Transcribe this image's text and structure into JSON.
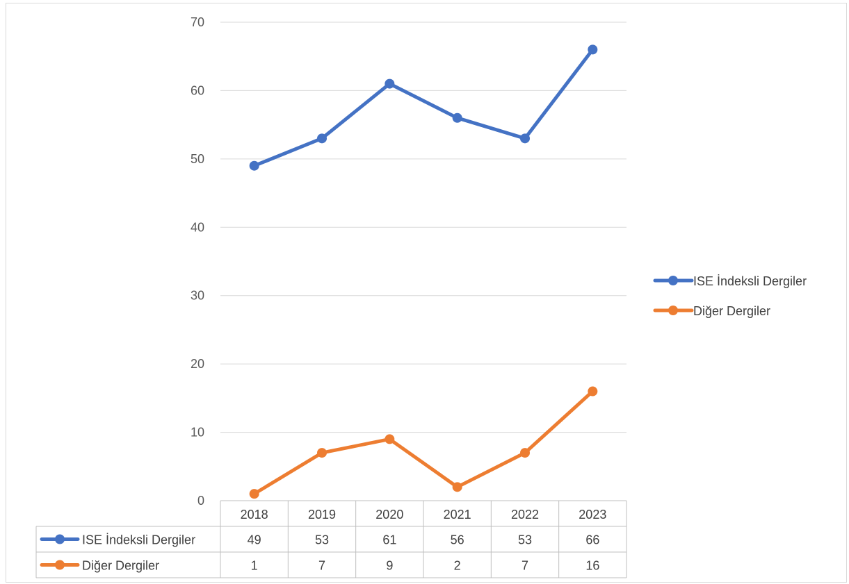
{
  "chart_data": {
    "type": "line",
    "categories": [
      "2018",
      "2019",
      "2020",
      "2021",
      "2022",
      "2023"
    ],
    "series": [
      {
        "name": "ISE İndeksli Dergiler",
        "color": "#4472C4",
        "values": [
          49,
          53,
          61,
          56,
          53,
          66
        ]
      },
      {
        "name": "Diğer Dergiler",
        "color": "#ED7D31",
        "values": [
          1,
          7,
          9,
          2,
          7,
          16
        ]
      }
    ],
    "y_ticks": [
      0,
      10,
      20,
      30,
      40,
      50,
      60,
      70
    ],
    "ylim": [
      0,
      70
    ],
    "grid": true,
    "legend_position": "right",
    "data_table": true
  }
}
